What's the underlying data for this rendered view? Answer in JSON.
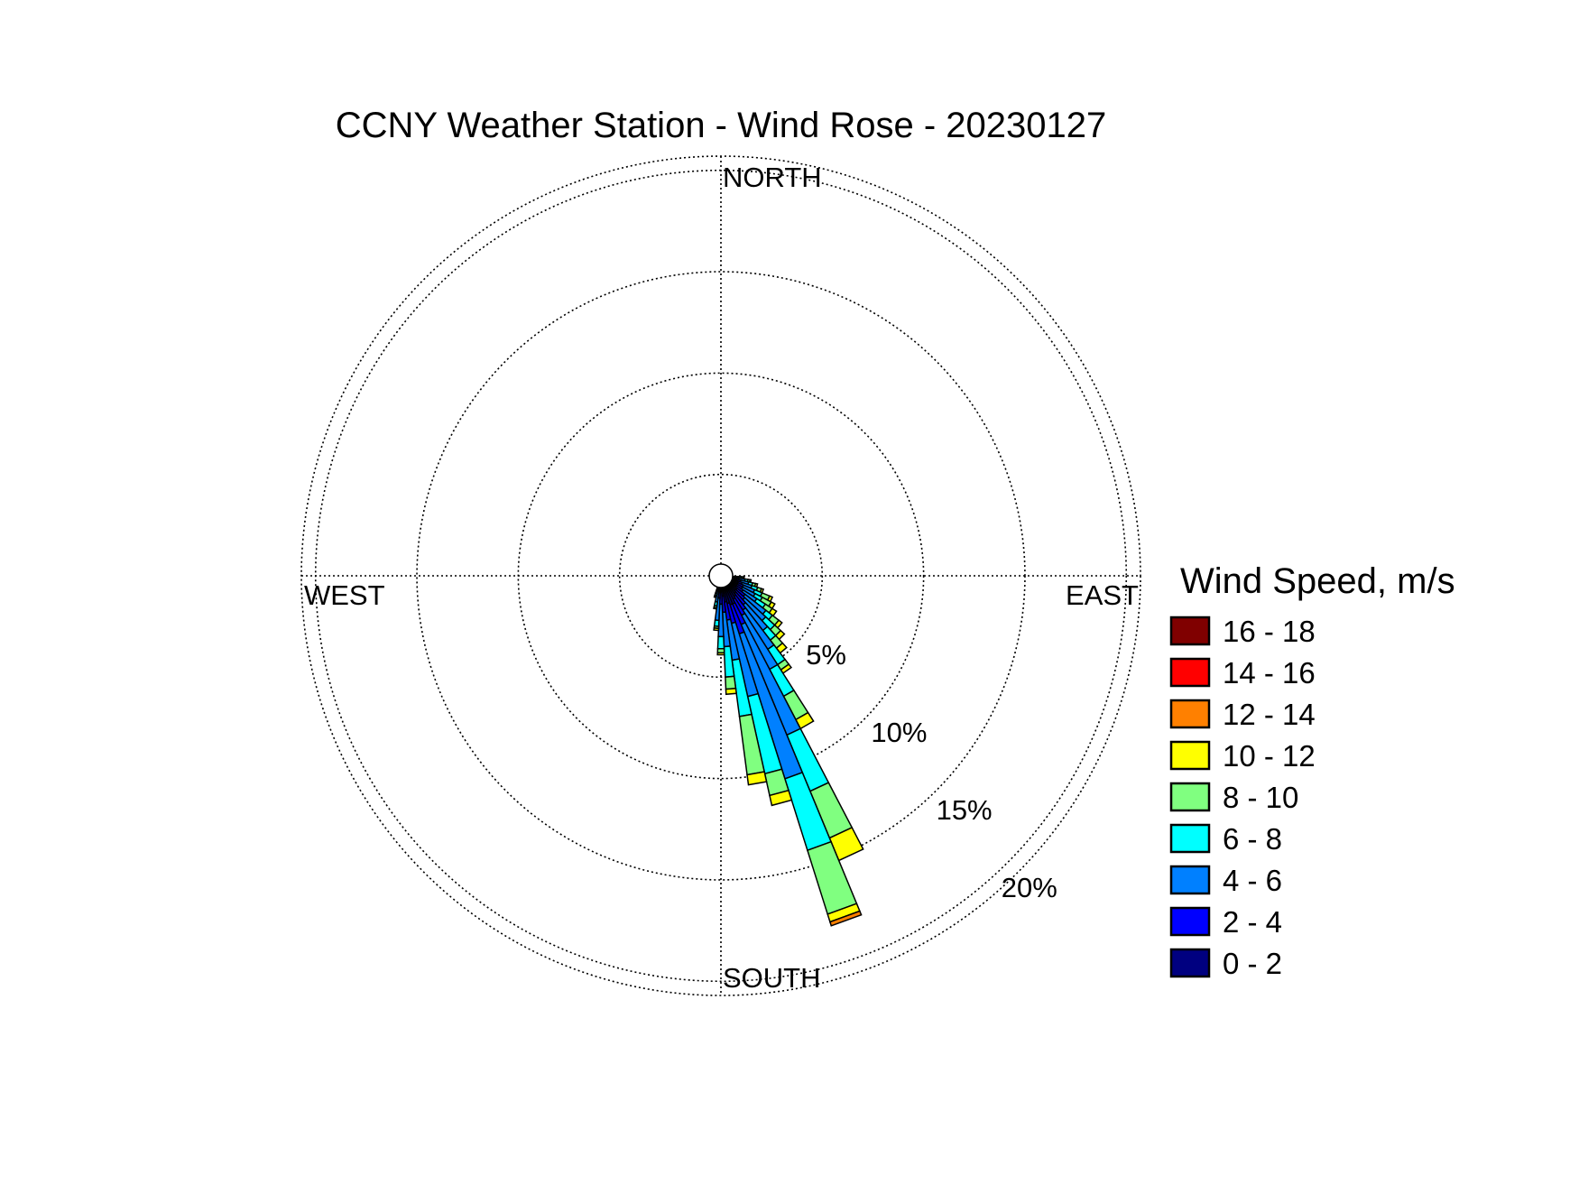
{
  "chart_data": {
    "type": "wind-rose",
    "title": "CCNY Weather Station - Wind Rose - 20230127",
    "directions": {
      "north": "NORTH",
      "east": "EAST",
      "south": "SOUTH",
      "west": "WEST"
    },
    "radial_unit": "%",
    "radial_ticks": [
      {
        "value": 5,
        "label": "5%"
      },
      {
        "value": 10,
        "label": "10%"
      },
      {
        "value": 15,
        "label": "15%"
      },
      {
        "value": 20,
        "label": "20%"
      }
    ],
    "rmax": 20.7,
    "grid": true,
    "legend": {
      "title": "Wind Speed, m/s",
      "placement": "right",
      "bins": [
        {
          "label": "16 - 18",
          "color": "#800000"
        },
        {
          "label": "14 - 16",
          "color": "#ff0000"
        },
        {
          "label": "12 - 14",
          "color": "#ff8000"
        },
        {
          "label": "10 - 12",
          "color": "#ffff00"
        },
        {
          "label": "8 - 10",
          "color": "#80ff80"
        },
        {
          "label": "6 - 8",
          "color": "#00ffff"
        },
        {
          "label": "4 - 6",
          "color": "#0080ff"
        },
        {
          "label": "2 - 4",
          "color": "#0000ff"
        },
        {
          "label": "0 - 2",
          "color": "#000080"
        }
      ]
    },
    "sector_width_deg": 5,
    "bin_order": [
      "0 - 2",
      "2 - 4",
      "4 - 6",
      "6 - 8",
      "8 - 10",
      "10 - 12",
      "12 - 14",
      "14 - 16",
      "16 - 18"
    ],
    "sectors": [
      {
        "direction_deg": 95,
        "cumulative_pct": [
          0.6,
          0.7,
          0.9,
          1.0,
          1.1,
          1.15,
          1.15,
          1.15,
          1.15
        ]
      },
      {
        "direction_deg": 100,
        "cumulative_pct": [
          0.7,
          0.9,
          1.2,
          1.35,
          1.45,
          1.5,
          1.5,
          1.5,
          1.5
        ]
      },
      {
        "direction_deg": 105,
        "cumulative_pct": [
          0.8,
          1.0,
          1.4,
          1.6,
          1.75,
          1.85,
          1.85,
          1.85,
          1.85
        ]
      },
      {
        "direction_deg": 110,
        "cumulative_pct": [
          0.9,
          1.1,
          1.6,
          1.9,
          2.1,
          2.2,
          2.2,
          2.2,
          2.2
        ]
      },
      {
        "direction_deg": 115,
        "cumulative_pct": [
          0.9,
          1.2,
          1.8,
          2.2,
          2.6,
          2.75,
          2.75,
          2.75,
          2.75
        ]
      },
      {
        "direction_deg": 120,
        "cumulative_pct": [
          0.9,
          1.2,
          1.9,
          2.3,
          2.8,
          3.0,
          3.0,
          3.0,
          3.0
        ]
      },
      {
        "direction_deg": 125,
        "cumulative_pct": [
          0.9,
          1.3,
          2.1,
          2.6,
          3.0,
          3.25,
          3.25,
          3.25,
          3.25
        ]
      },
      {
        "direction_deg": 130,
        "cumulative_pct": [
          1.0,
          1.5,
          2.8,
          3.2,
          3.6,
          3.8,
          3.8,
          3.8,
          3.8
        ]
      },
      {
        "direction_deg": 135,
        "cumulative_pct": [
          1.0,
          1.6,
          3.0,
          3.6,
          4.0,
          4.25,
          4.25,
          4.25,
          4.25
        ]
      },
      {
        "direction_deg": 140,
        "cumulative_pct": [
          1.1,
          1.8,
          3.4,
          4.0,
          4.5,
          4.8,
          4.8,
          4.8,
          4.8
        ]
      },
      {
        "direction_deg": 145,
        "cumulative_pct": [
          1.2,
          2.0,
          4.3,
          5.2,
          5.5,
          5.7,
          5.7,
          5.7,
          5.7
        ]
      },
      {
        "direction_deg": 150,
        "cumulative_pct": [
          1.3,
          2.2,
          5.2,
          6.7,
          8.0,
          8.5,
          8.5,
          8.5,
          8.5
        ]
      },
      {
        "direction_deg": 155,
        "cumulative_pct": [
          1.5,
          2.6,
          8.5,
          11.5,
          14.0,
          15.2,
          15.2,
          15.2,
          15.2
        ]
      },
      {
        "direction_deg": 160,
        "cumulative_pct": [
          1.5,
          3.0,
          10.5,
          14.2,
          17.5,
          17.9,
          18.1,
          18.1,
          18.1
        ]
      },
      {
        "direction_deg": 165,
        "cumulative_pct": [
          1.4,
          2.4,
          6.1,
          10.0,
          11.1,
          11.6,
          11.6,
          11.6,
          11.6
        ]
      },
      {
        "direction_deg": 170,
        "cumulative_pct": [
          1.3,
          2.2,
          4.2,
          7.0,
          9.9,
          10.4,
          10.4,
          10.4,
          10.4
        ]
      },
      {
        "direction_deg": 175,
        "cumulative_pct": [
          1.0,
          1.8,
          3.5,
          5.0,
          5.6,
          5.85,
          5.85,
          5.85,
          5.85
        ]
      },
      {
        "direction_deg": 180,
        "cumulative_pct": [
          0.8,
          1.4,
          3.0,
          3.6,
          3.8,
          3.9,
          3.9,
          3.9,
          3.9
        ]
      },
      {
        "direction_deg": 185,
        "cumulative_pct": [
          0.6,
          1.1,
          2.2,
          2.5,
          2.6,
          2.7,
          2.7,
          2.7,
          2.7
        ]
      },
      {
        "direction_deg": 190,
        "cumulative_pct": [
          0.5,
          0.8,
          1.3,
          1.5,
          1.6,
          1.65,
          1.65,
          1.65,
          1.65
        ]
      },
      {
        "direction_deg": 195,
        "cumulative_pct": [
          0.4,
          0.6,
          0.9,
          1.0,
          1.05,
          1.1,
          1.1,
          1.1,
          1.1
        ]
      }
    ]
  }
}
